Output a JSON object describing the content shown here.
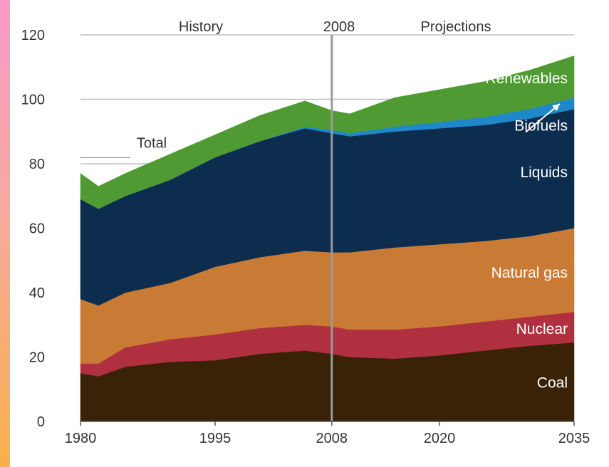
{
  "chart_data": {
    "type": "area",
    "stacked": true,
    "header_left": "History",
    "header_divider": "2008",
    "header_right": "Projections",
    "divider_year": 2008,
    "x_ticks": [
      1980,
      1995,
      2008,
      2020,
      2035
    ],
    "y_ticks": [
      0,
      20,
      40,
      60,
      80,
      100,
      120
    ],
    "xlim": [
      1980,
      2035
    ],
    "ylim": [
      0,
      120
    ],
    "grid": "horizontal at 80, 100, 120",
    "total_label": "Total",
    "x": [
      1980,
      1982,
      1985,
      1990,
      1995,
      2000,
      2005,
      2008,
      2010,
      2015,
      2020,
      2025,
      2030,
      2035
    ],
    "series": [
      {
        "name": "Coal",
        "color": "#3a2208",
        "label_color": "#ffffff",
        "values": [
          15,
          14,
          17,
          18.5,
          19,
          21,
          22,
          21,
          20,
          19.5,
          20.5,
          22,
          23.5,
          24.5
        ]
      },
      {
        "name": "Nuclear",
        "color": "#b03040",
        "label_color": "#ffffff",
        "values": [
          3,
          4,
          6,
          7,
          8,
          8,
          8,
          8.5,
          8.5,
          9,
          9,
          9,
          9,
          9.5
        ]
      },
      {
        "name": "Natural gas",
        "color": "#c97b36",
        "label_color": "#ffffff",
        "values": [
          20,
          18,
          17,
          17.5,
          21,
          22,
          23,
          23,
          24,
          25.5,
          25.5,
          25,
          25,
          26
        ]
      },
      {
        "name": "Liquids",
        "color": "#0d2d4f",
        "label_color": "#ffffff",
        "values": [
          31,
          30,
          30,
          32,
          34,
          36,
          38,
          37,
          36,
          36,
          36,
          36,
          36.5,
          37
        ]
      },
      {
        "name": "Biofuels",
        "color": "#1f88c8",
        "label_color": "#ffffff",
        "values": [
          0,
          0,
          0,
          0,
          0,
          0,
          0.5,
          1,
          1,
          1.5,
          2,
          2.5,
          3,
          3.5
        ]
      },
      {
        "name": "Renewables",
        "color": "#4f9a32",
        "label_color": "#ffffff",
        "values": [
          8,
          7,
          7,
          8,
          7,
          8,
          8,
          6,
          6,
          9,
          10,
          11,
          12,
          13
        ]
      }
    ]
  }
}
